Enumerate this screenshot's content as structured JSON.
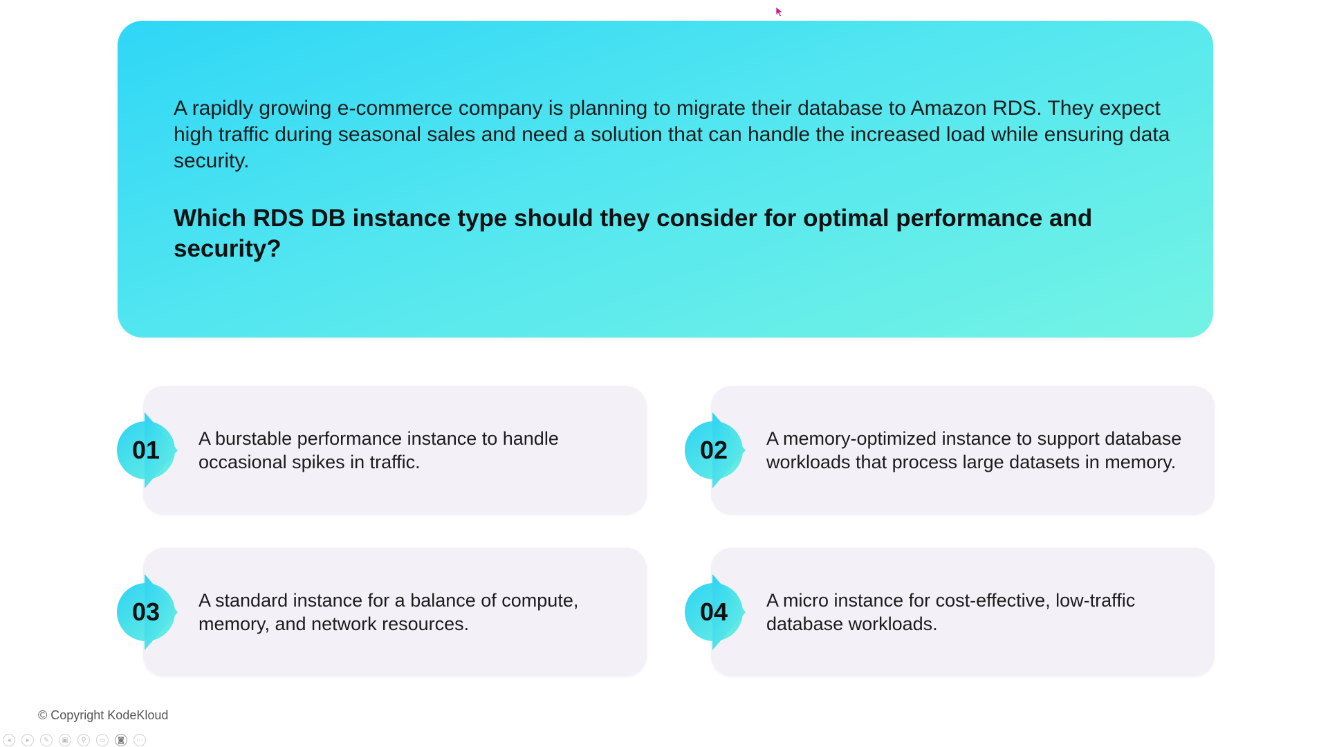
{
  "question": {
    "context": "A rapidly growing e-commerce company is planning to migrate their database to Amazon RDS. They expect high traffic during seasonal sales and need a solution that can handle the increased load while ensuring data security.",
    "prompt": "Which RDS DB instance type should they consider for optimal performance and security?"
  },
  "options": [
    {
      "number": "01",
      "text": "A burstable performance instance to handle occasional spikes in traffic."
    },
    {
      "number": "02",
      "text": "A memory-optimized instance to support database workloads that process large datasets in memory."
    },
    {
      "number": "03",
      "text": "A standard instance for a balance of compute, memory, and network resources."
    },
    {
      "number": "04",
      "text": "A micro instance for cost-effective, low-traffic database workloads."
    }
  ],
  "footer": {
    "copyright": "© Copyright KodeKloud"
  },
  "player_controls": [
    {
      "icon": "previous-icon",
      "glyph": "◂"
    },
    {
      "icon": "next-icon",
      "glyph": "▸"
    },
    {
      "icon": "pen-icon",
      "glyph": "✎"
    },
    {
      "icon": "slides-icon",
      "glyph": "▣"
    },
    {
      "icon": "zoom-icon",
      "glyph": "⚲"
    },
    {
      "icon": "subtitles-icon",
      "glyph": "▭"
    },
    {
      "icon": "camera-icon",
      "glyph": "◙"
    },
    {
      "icon": "more-icon",
      "glyph": "⋯"
    }
  ],
  "colors": {
    "panel_gradient_start": "#2fd6f6",
    "panel_gradient_end": "#74f3e4",
    "card_background": "#f4f0f7",
    "badge_gradient_start": "#2fd3f3",
    "badge_gradient_end": "#6cf0e2",
    "cursor": "#c0188a"
  }
}
